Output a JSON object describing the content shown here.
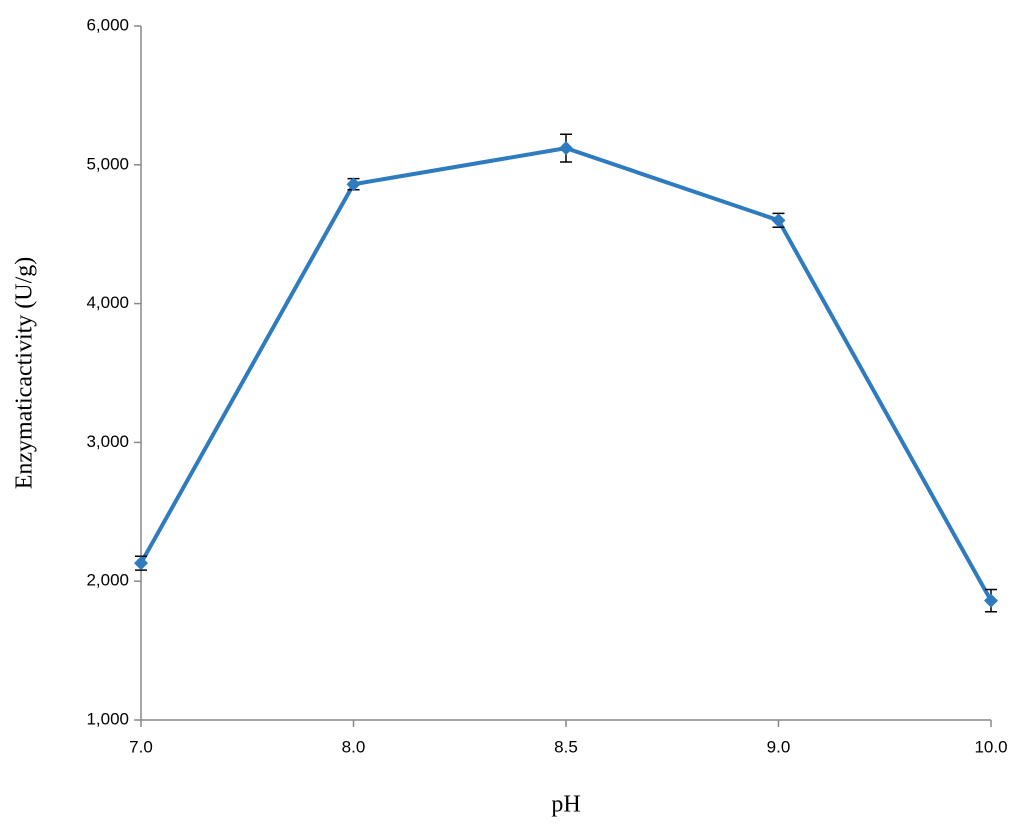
{
  "chart_data": {
    "type": "line",
    "x_label": "pH",
    "y_label": "Enzymaticactivity (U/g)",
    "categories": [
      "7.0",
      "8.0",
      "8.5",
      "9.0",
      "10.0"
    ],
    "values": [
      2130,
      4860,
      5120,
      4600,
      1860
    ],
    "errors": [
      50,
      40,
      100,
      50,
      80
    ],
    "color": "#2e7bbf",
    "ylim": [
      1000,
      6000
    ],
    "yticks": [
      {
        "value": 1000,
        "label": "1,000"
      },
      {
        "value": 2000,
        "label": "2,000"
      },
      {
        "value": 3000,
        "label": "3,000"
      },
      {
        "value": 4000,
        "label": "4,000"
      },
      {
        "value": 5000,
        "label": "5,000"
      },
      {
        "value": 6000,
        "label": "6,000"
      }
    ],
    "grid": false
  }
}
